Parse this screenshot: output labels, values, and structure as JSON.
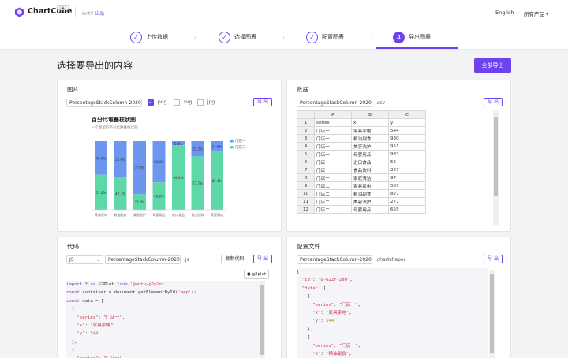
{
  "header": {
    "brand": "ChartCube",
    "beta": "beta",
    "sub_prefix": "AntV",
    "sub_link": "出品",
    "lang": "English",
    "products": "所有产品"
  },
  "steps": [
    {
      "label": "上传数据",
      "state": "done"
    },
    {
      "label": "选择图表",
      "state": "done"
    },
    {
      "label": "配置图表",
      "state": "done"
    },
    {
      "label": "导出图表",
      "state": "active",
      "num": "4"
    }
  ],
  "page_title": "选择要导出的内容",
  "export_all": "全部导出",
  "image_panel": {
    "title": "图片",
    "filename": "PercentageStackColumn-2020",
    "formats": [
      {
        "label": ".png",
        "checked": true
      },
      {
        "label": ".svg",
        "checked": false
      },
      {
        "label": ".jpg",
        "checked": false
      }
    ],
    "export": "导 出"
  },
  "data_panel": {
    "title": "数据",
    "filename": "PercentageStackColumn-2020",
    "ext": ".csv",
    "export": "导 出",
    "columns": [
      "A",
      "B",
      "C"
    ],
    "rows": [
      [
        "1",
        "series",
        "x",
        "y"
      ],
      [
        "2",
        "门店一",
        "家具家电",
        "544"
      ],
      [
        "3",
        "门店一",
        "粮油副食",
        "930"
      ],
      [
        "4",
        "门店一",
        "美容洗护",
        "951"
      ],
      [
        "5",
        "门店一",
        "母婴用品",
        "983"
      ],
      [
        "6",
        "门店一",
        "进口食品",
        "56"
      ],
      [
        "7",
        "门店一",
        "食品饮料",
        "267"
      ],
      [
        "8",
        "门店一",
        "家庭清洁",
        "97"
      ],
      [
        "9",
        "门店二",
        "家具家电",
        "567"
      ],
      [
        "10",
        "门店二",
        "粮油副食",
        "827"
      ],
      [
        "11",
        "门店二",
        "美容洗护",
        "277"
      ],
      [
        "12",
        "门店二",
        "母婴用品",
        "655"
      ]
    ]
  },
  "code_panel": {
    "title": "代码",
    "lang": "JS",
    "filename": "PercentageStackColumn-2020",
    "ext": ".js",
    "copy": "复制代码",
    "export": "导 出",
    "tag": "g2plot"
  },
  "config_panel": {
    "title": "配置文件",
    "filename": "PercentageStackColumn-2020",
    "ext": ".chartshaper",
    "export": "导 出"
  },
  "chart_data": {
    "type": "bar",
    "title": "百分比堆叠柱状图",
    "subtitle": "一个简单的百分比堆叠柱状图",
    "categories": [
      "家具家电",
      "粮油副食",
      "美容洗护",
      "母婴用品",
      "进口食品",
      "食品饮料",
      "家庭清洁"
    ],
    "series": [
      {
        "name": "门店一",
        "values": [
          49.0,
          52.9,
          77.4,
          60.0,
          5.8,
          22.3,
          14.6
        ],
        "color": "#6c96f0"
      },
      {
        "name": "门店二",
        "values": [
          51.0,
          47.1,
          22.6,
          40.0,
          94.2,
          77.7,
          85.4
        ],
        "color": "#5fd8a8"
      }
    ],
    "ylim": [
      0,
      100
    ],
    "legend": "right"
  }
}
